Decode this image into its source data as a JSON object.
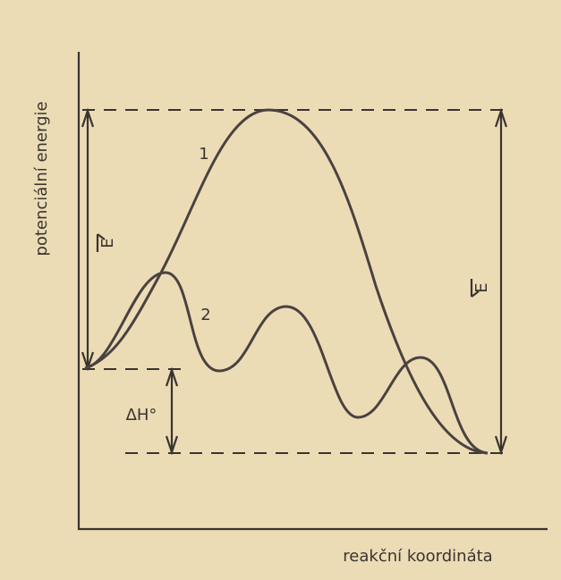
{
  "axes": {
    "y_label": "potenciální energie",
    "x_label": "reakční koordináta"
  },
  "curves": [
    {
      "label": "1"
    },
    {
      "label": "2"
    }
  ],
  "annotations": {
    "forward_barrier": "E",
    "reverse_barrier": "E",
    "enthalpy": "ΔH°"
  }
}
